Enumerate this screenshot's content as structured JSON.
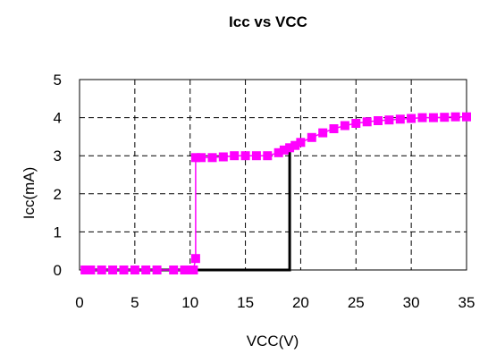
{
  "chart_data": {
    "type": "line",
    "title": "Icc vs VCC",
    "xlabel": "VCC(V)",
    "ylabel": "Icc(mA)",
    "xlim": [
      0,
      35
    ],
    "ylim": [
      0,
      5
    ],
    "x_ticks": [
      0,
      5,
      10,
      15,
      20,
      25,
      30,
      35
    ],
    "y_ticks": [
      0,
      1,
      2,
      3,
      4,
      5
    ],
    "grid": true,
    "colors": {
      "sweep_up_line": "#000000",
      "sweep_down_line": "#ff00ff",
      "sweep_down_markers": "#ff00ff"
    },
    "series": [
      {
        "color": "#000000",
        "marker": "none",
        "x": [
          0.5,
          10.7,
          19.0,
          19.0
        ],
        "y": [
          0.0,
          0.0,
          0.0,
          3.1
        ]
      },
      {
        "color": "#ff00ff",
        "marker": "square",
        "x": [
          35,
          34,
          33,
          32,
          31,
          30,
          29,
          28,
          27,
          26,
          25,
          24,
          23,
          22,
          21,
          20,
          19.5,
          19,
          18.5,
          18,
          17,
          16,
          15,
          14,
          13,
          12,
          11,
          10.5,
          10.5,
          10.3,
          9.5,
          8.5,
          7,
          6,
          5,
          4,
          3,
          2,
          1,
          0.5
        ],
        "y": [
          4.02,
          4.02,
          4.01,
          4.0,
          4.0,
          3.98,
          3.96,
          3.94,
          3.92,
          3.89,
          3.85,
          3.79,
          3.71,
          3.6,
          3.48,
          3.35,
          3.27,
          3.21,
          3.15,
          3.08,
          3.0,
          3.0,
          3.0,
          3.0,
          2.97,
          2.95,
          2.95,
          2.95,
          0.3,
          0.0,
          0.0,
          0.0,
          0.0,
          0.0,
          0.0,
          0.0,
          0.0,
          0.0,
          0.0,
          0.0
        ]
      }
    ]
  }
}
